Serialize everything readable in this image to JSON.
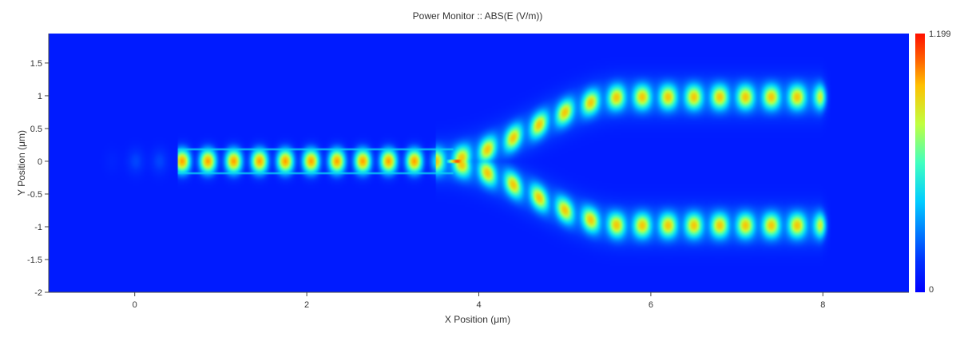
{
  "chart_data": {
    "type": "heatmap",
    "title": "Power Monitor :: ABS(E (V/m))",
    "xlabel": "X Position (μm)",
    "ylabel": "Y Position (μm)",
    "xlim": [
      -1.0,
      9.0
    ],
    "ylim": [
      -2.0,
      1.95
    ],
    "xticks": [
      "0",
      "2",
      "4",
      "6",
      "8"
    ],
    "xtick_values": [
      0,
      2,
      4,
      6,
      8
    ],
    "yticks": [
      "-2",
      "-1.5",
      "-1",
      "-0.5",
      "0",
      "0.5",
      "1",
      "1.5"
    ],
    "ytick_values": [
      -2,
      -1.5,
      -1,
      -0.5,
      0,
      0.5,
      1,
      1.5
    ],
    "colorbar": {
      "min": 0,
      "max": 1.199,
      "min_label": "0",
      "max_label": "1.199",
      "colormap": "jet"
    },
    "field_structure": {
      "description_free": true,
      "input_waveguide": {
        "x_start": 0.5,
        "x_end": 3.3,
        "y": 0.0,
        "half_width": 0.18,
        "peak_spacing": 0.3,
        "peak_value": 1.0
      },
      "source_residual": {
        "x": 0.15,
        "y": 0.0,
        "value": 0.2
      },
      "split_point": {
        "x": 3.75,
        "y": 0.0,
        "value": 1.199
      },
      "branches": [
        {
          "y_start": 0.0,
          "y_end": 0.98,
          "x_start": 3.5,
          "x_end": 8.0,
          "peak_value": 0.72
        },
        {
          "y_start": 0.0,
          "y_end": -0.98,
          "x_start": 3.5,
          "x_end": 8.0,
          "peak_value": 0.72
        }
      ],
      "background_value": 0.08
    }
  }
}
